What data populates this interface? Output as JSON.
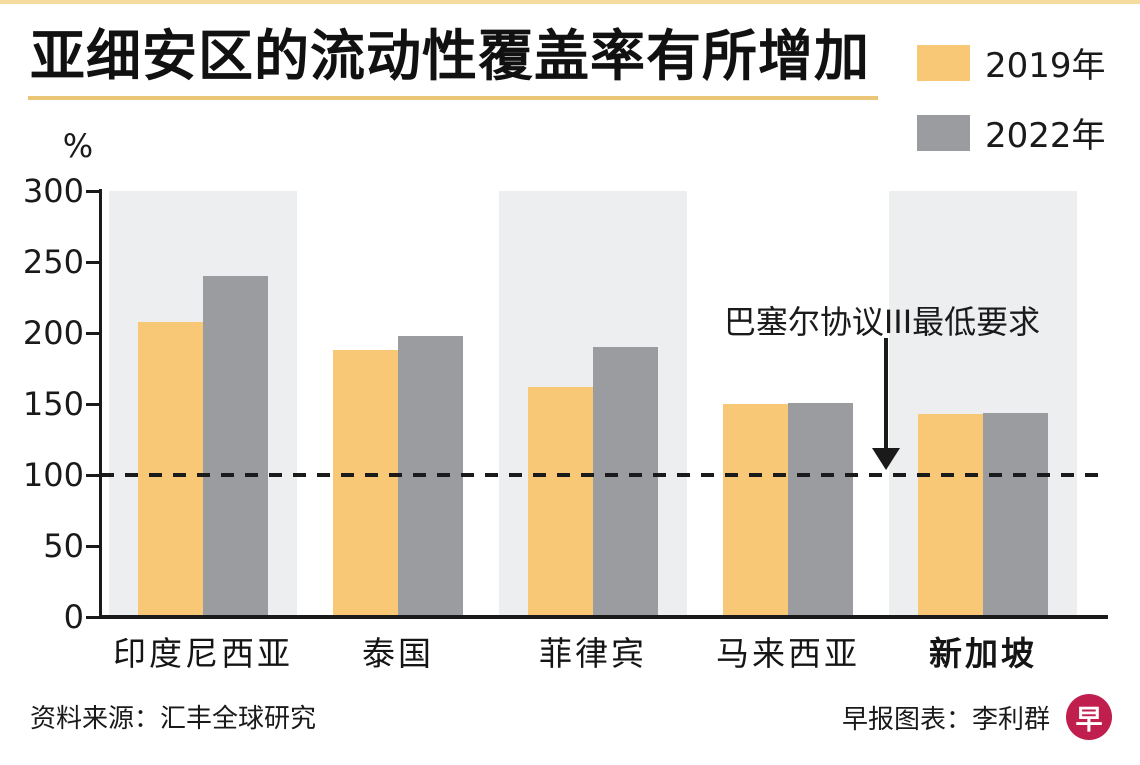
{
  "page": {
    "title": "亚细安区的流动性覆盖率有所增加",
    "y_axis_unit": "%"
  },
  "legend": {
    "items": [
      {
        "label": "2019年",
        "color": "#f9c877"
      },
      {
        "label": "2022年",
        "color": "#9a9c9f"
      }
    ]
  },
  "footer": {
    "source": "资料来源：汇丰全球研究",
    "credit": "早报图表：李利群",
    "logo_glyph": "早"
  },
  "colors": {
    "bar_2019": "#f9c877",
    "bar_2022": "#9a9c9f",
    "background_band": "#edeef0",
    "accent_gold": "#ebc676",
    "logo_red": "#c01e4c",
    "ink": "#1a1a1a"
  },
  "chart_data": {
    "type": "bar",
    "title": "亚细安区的流动性覆盖率有所增加",
    "xlabel": "",
    "ylabel": "%",
    "ylim": [
      0,
      300
    ],
    "yticks": [
      0,
      50,
      100,
      150,
      200,
      250,
      300
    ],
    "grid": false,
    "legend_position": "top-right",
    "categories": [
      "印度尼西亚",
      "泰国",
      "菲律宾",
      "马来西亚",
      "新加坡"
    ],
    "emphasized_category": "新加坡",
    "series": [
      {
        "name": "2019年",
        "color": "#f9c877",
        "values": [
          208,
          188,
          162,
          150,
          143
        ]
      },
      {
        "name": "2022年",
        "color": "#9a9c9f",
        "values": [
          240,
          198,
          190,
          151,
          144
        ]
      }
    ],
    "reference_line": {
      "value": 100,
      "label": "巴塞尔协议III最低要求",
      "style": "dashed"
    },
    "background_band_category_indexes": [
      0,
      2,
      4
    ]
  }
}
